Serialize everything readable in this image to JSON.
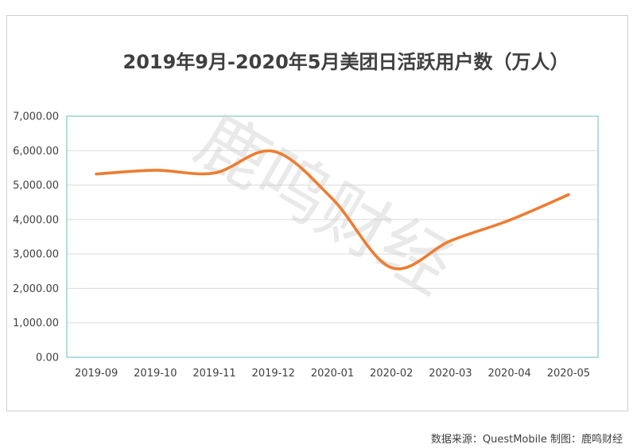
{
  "chart_data": {
    "type": "line",
    "title": "2019年9月-2020年5月美团日活跃用户数（万人）",
    "categories": [
      "2019-09",
      "2019-10",
      "2019-11",
      "2019-12",
      "2020-01",
      "2020-02",
      "2020-03",
      "2020-04",
      "2020-05"
    ],
    "series": [
      {
        "values": [
          5320,
          5430,
          5350,
          5980,
          4600,
          2600,
          3380,
          3980,
          4720
        ]
      }
    ],
    "ylim": [
      0,
      7000
    ],
    "yticks": [
      0,
      1000,
      2000,
      3000,
      4000,
      5000,
      6000,
      7000
    ],
    "ytick_labels": [
      "0.00",
      "1,000.00",
      "2,000.00",
      "3,000.00",
      "4,000.00",
      "5,000.00",
      "6,000.00",
      "7,000.00"
    ],
    "grid": true,
    "line_color": "#ED7D31",
    "plot_border_color": "#7FC8C8"
  },
  "watermark": "鹿鸣财经",
  "source_note": "数据来源：QuestMobile 制图：鹿鸣财经"
}
